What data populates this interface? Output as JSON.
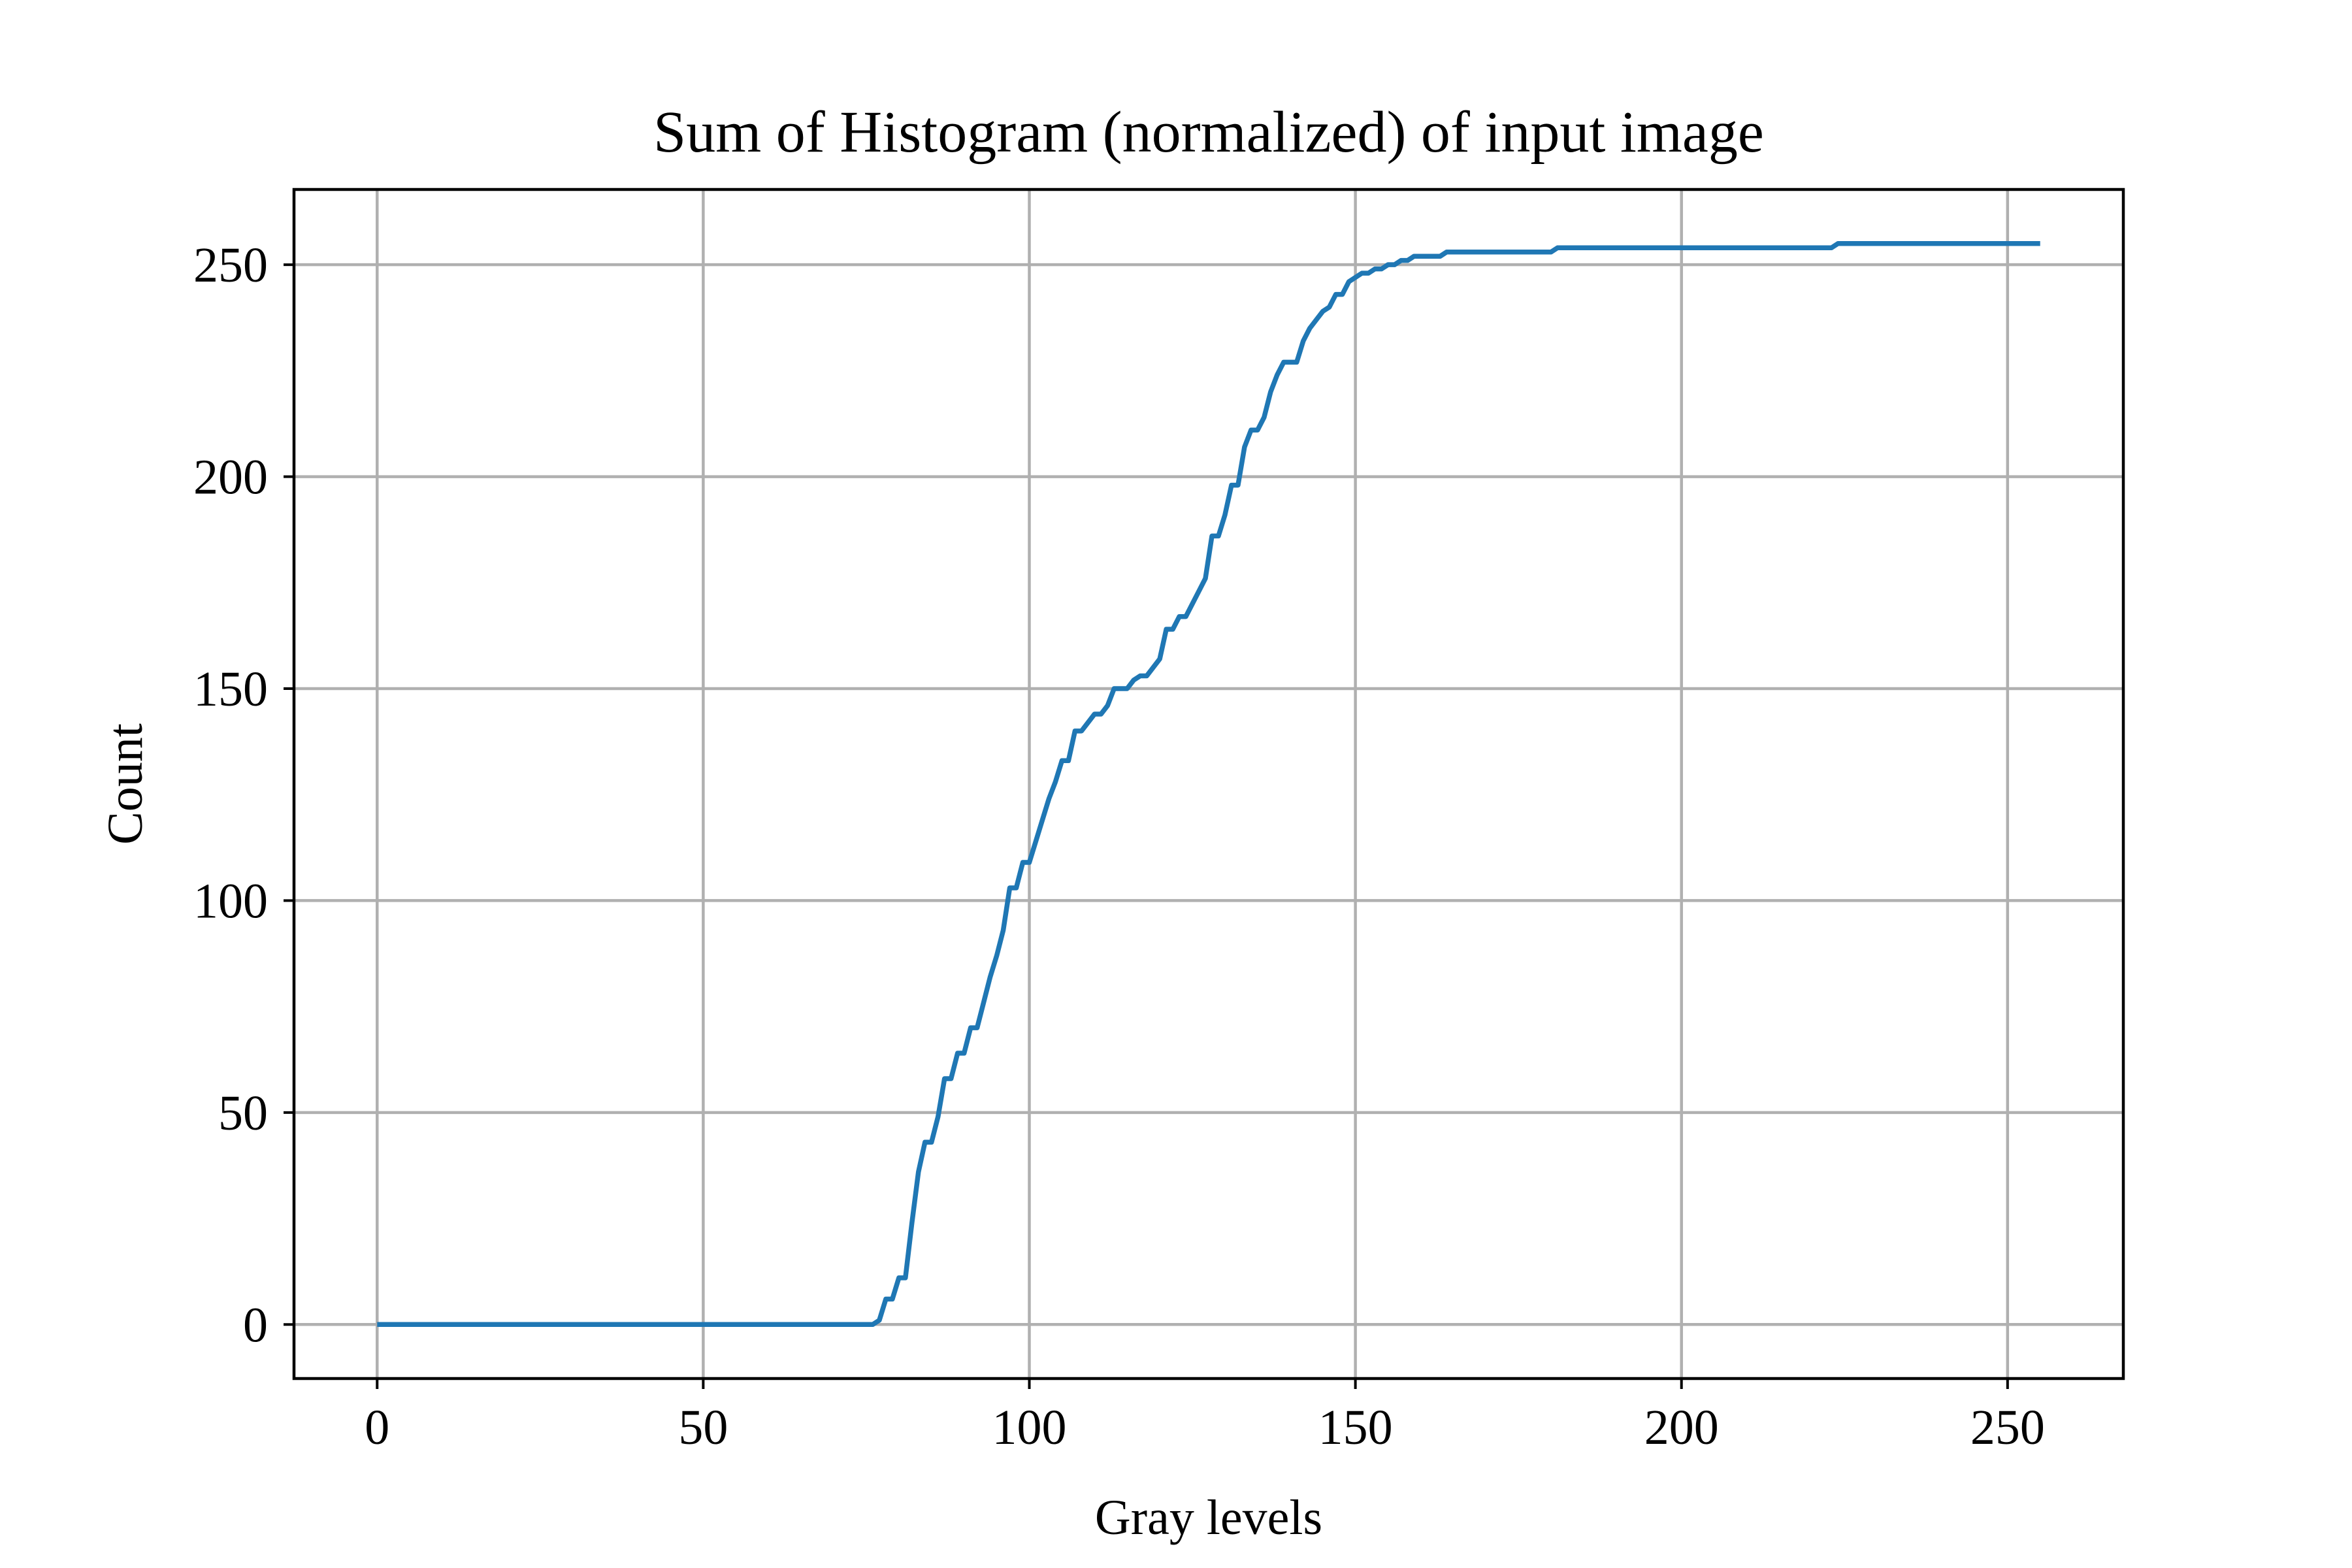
{
  "chart_data": {
    "type": "line",
    "title": "Sum of Histogram (normalized) of input image",
    "xlabel": "Gray levels",
    "ylabel": "Count",
    "xlim": [
      -12.75,
      267.75
    ],
    "ylim": [
      -12.75,
      267.75
    ],
    "xticks": [
      0,
      50,
      100,
      150,
      200,
      250
    ],
    "yticks": [
      0,
      50,
      100,
      150,
      200,
      250
    ],
    "grid": true,
    "legend": "none",
    "colors": {
      "series": "#1f77b4",
      "grid": "#b0b0b0",
      "frame": "#000000"
    },
    "series": [
      {
        "color": "#1f77b4",
        "x": [
          0,
          76,
          77,
          78,
          79,
          80,
          81,
          82,
          83,
          84,
          85,
          86,
          87,
          88,
          89,
          90,
          91,
          92,
          93,
          94,
          95,
          96,
          97,
          98,
          99,
          100,
          101,
          102,
          103,
          104,
          105,
          106,
          107,
          108,
          109,
          110,
          111,
          112,
          113,
          114,
          115,
          116,
          117,
          118,
          119,
          120,
          121,
          122,
          123,
          124,
          125,
          126,
          127,
          128,
          129,
          130,
          131,
          132,
          133,
          134,
          135,
          136,
          137,
          138,
          139,
          140,
          141,
          142,
          143,
          144,
          145,
          146,
          147,
          148,
          149,
          150,
          151,
          152,
          153,
          154,
          155,
          156,
          157,
          158,
          159,
          160,
          161,
          162,
          163,
          164,
          180,
          181,
          223,
          224,
          255
        ],
        "y": [
          0,
          0,
          1,
          6,
          6,
          11,
          11,
          24,
          36,
          43,
          43,
          49,
          58,
          58,
          64,
          64,
          70,
          70,
          76,
          82,
          87,
          93,
          103,
          103,
          109,
          109,
          114,
          119,
          124,
          128,
          133,
          133,
          140,
          140,
          142,
          144,
          144,
          146,
          150,
          150,
          150,
          152,
          153,
          153,
          155,
          157,
          164,
          164,
          167,
          167,
          170,
          173,
          176,
          186,
          186,
          191,
          198,
          198,
          207,
          211,
          211,
          214,
          220,
          224,
          227,
          227,
          227,
          232,
          235,
          237,
          239,
          240,
          243,
          243,
          246,
          247,
          248,
          248,
          249,
          249,
          250,
          250,
          251,
          251,
          252,
          252,
          252,
          252,
          252,
          253,
          253,
          254,
          254,
          255,
          255
        ]
      }
    ]
  }
}
